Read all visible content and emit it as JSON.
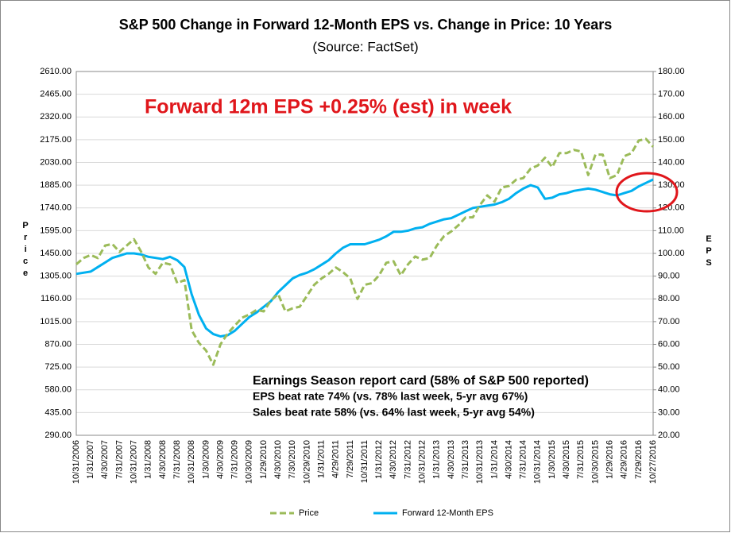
{
  "chart_data": {
    "type": "line",
    "title": "S&P 500 Change in Forward 12-Month EPS vs. Change in Price: 10 Years",
    "subtitle": "(Source: FactSet)",
    "ylabel": "Price",
    "y2label": "EPS",
    "annotations": [
      "Forward 12m EPS +0.25% (est) in week",
      "Earnings Season report card (58% of S&P 500 reported)",
      "EPS beat rate 74% (vs. 78% last week, 5-yr avg 67%)",
      "Sales beat rate 58% (vs. 64% last week, 5-yr avg 54%)"
    ],
    "categories": [
      "10/31/2006",
      null,
      "1/31/2007",
      null,
      "4/30/2007",
      null,
      "7/31/2007",
      null,
      "10/31/2007",
      null,
      "1/31/2008",
      null,
      "4/30/2008",
      null,
      "7/31/2008",
      null,
      "10/31/2008",
      null,
      "1/30/2009",
      null,
      "4/30/2009",
      null,
      "7/31/2009",
      null,
      "10/30/2009",
      null,
      "1/29/2010",
      null,
      "4/30/2010",
      null,
      "7/30/2010",
      null,
      "10/29/2010",
      null,
      "1/31/2011",
      null,
      "4/29/2011",
      null,
      "7/29/2011",
      null,
      "10/31/2011",
      null,
      "1/31/2012",
      null,
      "4/30/2012",
      null,
      "7/31/2012",
      null,
      "10/31/2012",
      null,
      "1/31/2013",
      null,
      "4/30/2013",
      null,
      "7/31/2013",
      null,
      "10/31/2013",
      null,
      "1/31/2014",
      null,
      "4/30/2014",
      null,
      "7/31/2014",
      null,
      "10/31/2014",
      null,
      "1/30/2015",
      null,
      "4/30/2015",
      null,
      "7/31/2015",
      null,
      "10/30/2015",
      null,
      "1/29/2016",
      null,
      "4/29/2016",
      null,
      "7/29/2016",
      null,
      "10/27/2016"
    ],
    "series": [
      {
        "name": "Price",
        "color": "#9bbb59",
        "dash": true,
        "values": [
          1380,
          1420,
          1440,
          1420,
          1500,
          1510,
          1460,
          1500,
          1540,
          1460,
          1360,
          1320,
          1390,
          1380,
          1260,
          1280,
          960,
          880,
          830,
          740,
          870,
          940,
          990,
          1040,
          1060,
          1090,
          1080,
          1150,
          1190,
          1080,
          1100,
          1110,
          1180,
          1250,
          1290,
          1320,
          1360,
          1330,
          1290,
          1160,
          1250,
          1260,
          1310,
          1390,
          1400,
          1310,
          1380,
          1430,
          1410,
          1420,
          1500,
          1560,
          1590,
          1630,
          1680,
          1680,
          1760,
          1820,
          1780,
          1870,
          1880,
          1920,
          1930,
          1990,
          2010,
          2060,
          2000,
          2090,
          2090,
          2110,
          2100,
          1950,
          2080,
          2080,
          1930,
          1950,
          2070,
          2090,
          2170,
          2180,
          2130
        ]
      },
      {
        "name": "Forward 12-Month EPS",
        "color": "#00b0f0",
        "axis": "y2",
        "values": [
          91,
          91.5,
          92,
          94,
          96,
          98,
          99,
          100,
          100,
          99.5,
          98.5,
          98,
          97.5,
          98.5,
          97,
          94,
          82,
          73,
          67,
          64.5,
          63.5,
          64,
          66,
          69,
          72,
          74,
          76.5,
          79,
          83,
          86,
          89,
          90.5,
          91.5,
          93,
          95,
          97,
          100,
          102.5,
          104,
          104,
          104,
          105,
          106,
          107.5,
          109.5,
          109.5,
          110,
          111,
          111.5,
          113,
          114,
          115,
          115.5,
          117,
          118.5,
          120,
          120.5,
          121,
          121.5,
          122.5,
          124,
          126.5,
          128.5,
          130,
          129,
          124,
          124.5,
          126,
          126.5,
          127.5,
          128,
          128.5,
          128,
          127,
          126,
          125.5,
          126.5,
          127.5,
          129.5,
          131,
          132.5
        ]
      }
    ],
    "ylim": [
      290,
      2610
    ],
    "yticks": [
      {
        "value": 290,
        "label": "290.00"
      },
      {
        "value": 435,
        "label": "435.00"
      },
      {
        "value": 580,
        "label": "580.00"
      },
      {
        "value": 725,
        "label": "725.00"
      },
      {
        "value": 870,
        "label": "870.00"
      },
      {
        "value": 1015,
        "label": "1015.00"
      },
      {
        "value": 1160,
        "label": "1160.00"
      },
      {
        "value": 1305,
        "label": "1305.00"
      },
      {
        "value": 1450,
        "label": "1450.00"
      },
      {
        "value": 1595,
        "label": "1595.00"
      },
      {
        "value": 1740,
        "label": "1740.00"
      },
      {
        "value": 1885,
        "label": "1885.00"
      },
      {
        "value": 2030,
        "label": "2030.00"
      },
      {
        "value": 2175,
        "label": "2175.00"
      },
      {
        "value": 2320,
        "label": "2320.00"
      },
      {
        "value": 2465,
        "label": "2465.00"
      },
      {
        "value": 2610,
        "label": "2610.00"
      }
    ],
    "y2lim": [
      20,
      180
    ],
    "y2ticks": [
      {
        "value": 20,
        "label": "20.00"
      },
      {
        "value": 30,
        "label": "30.00"
      },
      {
        "value": 40,
        "label": "40.00"
      },
      {
        "value": 50,
        "label": "50.00"
      },
      {
        "value": 60,
        "label": "60.00"
      },
      {
        "value": 70,
        "label": "70.00"
      },
      {
        "value": 80,
        "label": "80.00"
      },
      {
        "value": 90,
        "label": "90.00"
      },
      {
        "value": 100,
        "label": "100.00"
      },
      {
        "value": 110,
        "label": "110.00"
      },
      {
        "value": 120,
        "label": "120.00"
      },
      {
        "value": 130,
        "label": "130.00"
      },
      {
        "value": 140,
        "label": "140.00"
      },
      {
        "value": 150,
        "label": "150.00"
      },
      {
        "value": 160,
        "label": "160.00"
      },
      {
        "value": 170,
        "label": "170.00"
      },
      {
        "value": 180,
        "label": "180.00"
      }
    ],
    "grid": true,
    "legend": "bottom"
  }
}
